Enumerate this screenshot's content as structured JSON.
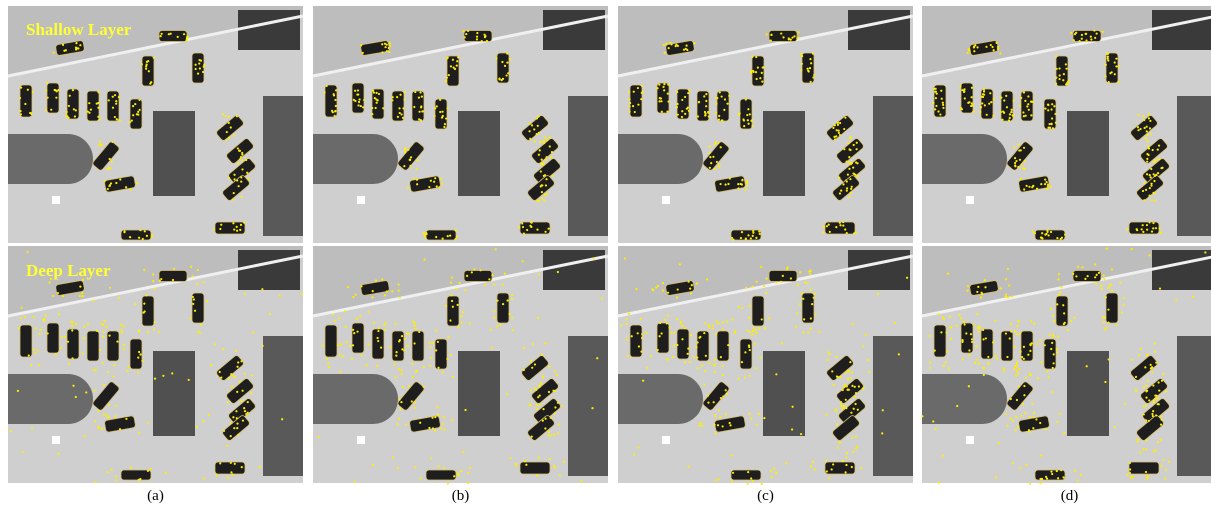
{
  "row_labels": [
    "Shallow Layer",
    "Deep Layer"
  ],
  "captions": [
    "(a)",
    "(b)",
    "(c)",
    "(d)"
  ]
}
